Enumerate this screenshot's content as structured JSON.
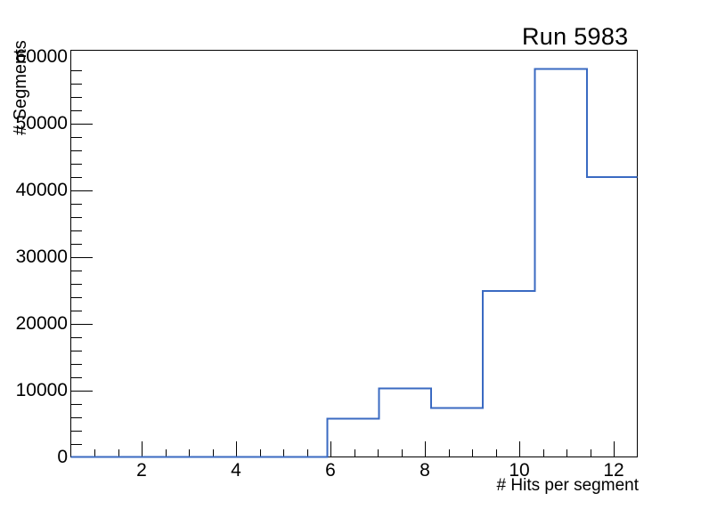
{
  "chart_data": {
    "type": "histogram-step",
    "title": "Run 5983",
    "xlabel": "# Hits per segment",
    "ylabel": "# Segments",
    "xlim": [
      0.5,
      12.5
    ],
    "ylim": [
      0,
      61000
    ],
    "grid": false,
    "legend": null,
    "x_ticks": [
      {
        "value": 2,
        "label": "2"
      },
      {
        "value": 4,
        "label": "4"
      },
      {
        "value": 6,
        "label": "6"
      },
      {
        "value": 8,
        "label": "8"
      },
      {
        "value": 10,
        "label": "10"
      },
      {
        "value": 12,
        "label": "12"
      }
    ],
    "x_minor_tick_step": 0.5,
    "y_ticks": [
      {
        "value": 0,
        "label": "0"
      },
      {
        "value": 10000,
        "label": "10000"
      },
      {
        "value": 20000,
        "label": "20000"
      },
      {
        "value": 30000,
        "label": "30000"
      },
      {
        "value": 40000,
        "label": "40000"
      },
      {
        "value": 50000,
        "label": "50000"
      },
      {
        "value": 60000,
        "label": "60000"
      }
    ],
    "y_minor_tick_step": 2000,
    "bin_edges": [
      0.5,
      5.93,
      7.03,
      8.13,
      9.23,
      10.33,
      11.43,
      12.5
    ],
    "counts": [
      0,
      5750,
      10300,
      7350,
      24900,
      58200,
      42000
    ],
    "line_color": "#3a6ac2",
    "frame_color": "#000000",
    "background_color": "#ffffff"
  }
}
